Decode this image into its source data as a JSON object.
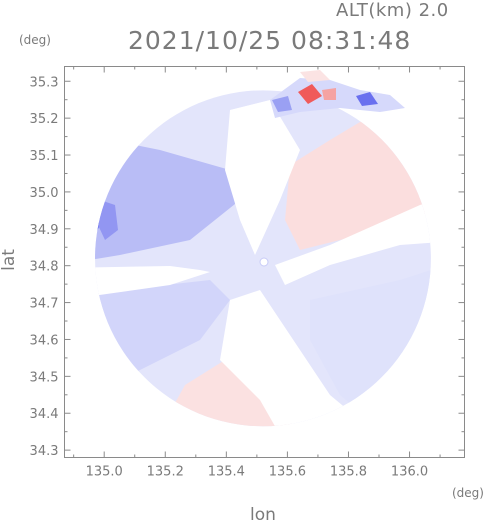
{
  "header": {
    "altitude": "ALT(km) 2.0",
    "timestamp": "2021/10/25 08:31:48"
  },
  "chart_data": {
    "type": "heatmap",
    "title": "2021/10/25 08:31:48",
    "subtitle": "ALT(km) 2.0",
    "xlabel": "lon",
    "ylabel": "lat",
    "xunit": "(deg)",
    "yunit": "(deg)",
    "xlim": [
      134.87,
      136.18
    ],
    "ylim": [
      34.28,
      35.34
    ],
    "xticks": [
      135.0,
      135.2,
      135.4,
      135.6,
      135.8,
      136.0
    ],
    "xtick_labels": [
      "135.0",
      "135.2",
      "135.4",
      "135.6",
      "135.8",
      "136.0"
    ],
    "yticks": [
      34.3,
      34.4,
      34.5,
      34.6,
      34.7,
      34.8,
      34.9,
      35.0,
      35.1,
      35.2,
      35.3
    ],
    "ytick_labels": [
      "34.3",
      "34.4",
      "34.5",
      "34.6",
      "34.7",
      "34.8",
      "34.9",
      "35.0",
      "35.1",
      "35.2",
      "35.3"
    ],
    "radar_center": {
      "lon": 135.52,
      "lat": 34.82
    },
    "radar_range_deg": 0.55,
    "colors": {
      "approaching_strong": "#5a5ff0",
      "approaching_medium": "#9aa0f0",
      "approaching_light": "#d6d9fb",
      "receding_light": "#fbdcdc",
      "receding_strong": "#f05050",
      "no_data": "#ffffff",
      "axis": "#7a7a7a"
    }
  }
}
